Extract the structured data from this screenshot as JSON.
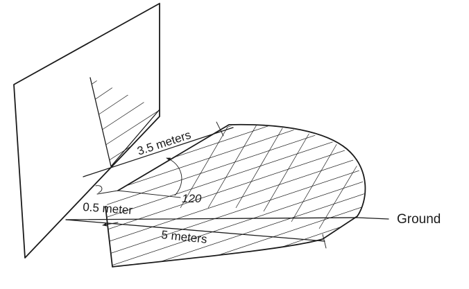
{
  "labels": {
    "depth": "3.5 meters",
    "angle": "120",
    "offset": "0.5 meter",
    "width": "5 meters",
    "ground": "Ground"
  },
  "colors": {
    "ink": "#1a1a1a",
    "background": "#ffffff"
  }
}
